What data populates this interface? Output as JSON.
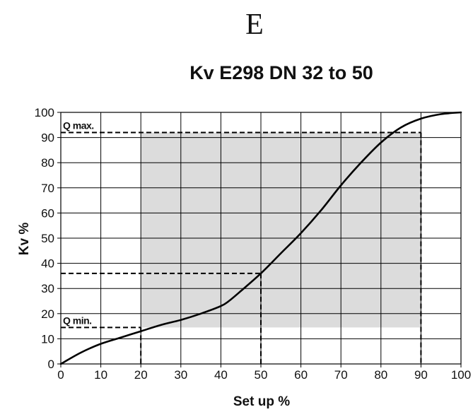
{
  "header": {
    "letter": "E"
  },
  "chart_data": {
    "type": "line",
    "title": "Kv  E298 DN 32 to 50",
    "xlabel": "Set up %",
    "ylabel": "Kv %",
    "xlim": [
      0,
      100
    ],
    "ylim": [
      0,
      100
    ],
    "x_ticks": [
      "0",
      "10",
      "20",
      "30",
      "40",
      "50",
      "60",
      "70",
      "80",
      "90",
      "100"
    ],
    "y_ticks": [
      "0",
      "10",
      "20",
      "30",
      "40",
      "50",
      "60",
      "70",
      "80",
      "90",
      "100"
    ],
    "grid": true,
    "series": [
      {
        "x": [
          0,
          5,
          10,
          15,
          20,
          25,
          30,
          35,
          40,
          42,
          45,
          50,
          55,
          60,
          65,
          70,
          75,
          80,
          85,
          90,
          95,
          100
        ],
        "y": [
          0,
          4.5,
          8,
          10.5,
          13,
          15.5,
          17.5,
          20,
          23,
          25,
          29,
          36,
          44,
          52,
          61,
          71,
          80,
          88,
          94,
          97.5,
          99.3,
          100
        ]
      }
    ],
    "shaded_region": {
      "x_range": [
        20,
        90
      ],
      "y_range": [
        14.5,
        92
      ],
      "color": "#dcdcdc"
    },
    "annotations": [
      {
        "text": "Q max.",
        "x": 0,
        "y": 92,
        "dashed_to_x": 90
      },
      {
        "text": "Q min.",
        "x": 0,
        "y": 14.5,
        "dashed_to_x": 20
      },
      {
        "text": "",
        "x": 0,
        "y": 36,
        "dashed_to_x": 50
      }
    ],
    "colors": {
      "line": "#000000",
      "grid": "#000000",
      "shade": "#dcdcdc"
    }
  }
}
